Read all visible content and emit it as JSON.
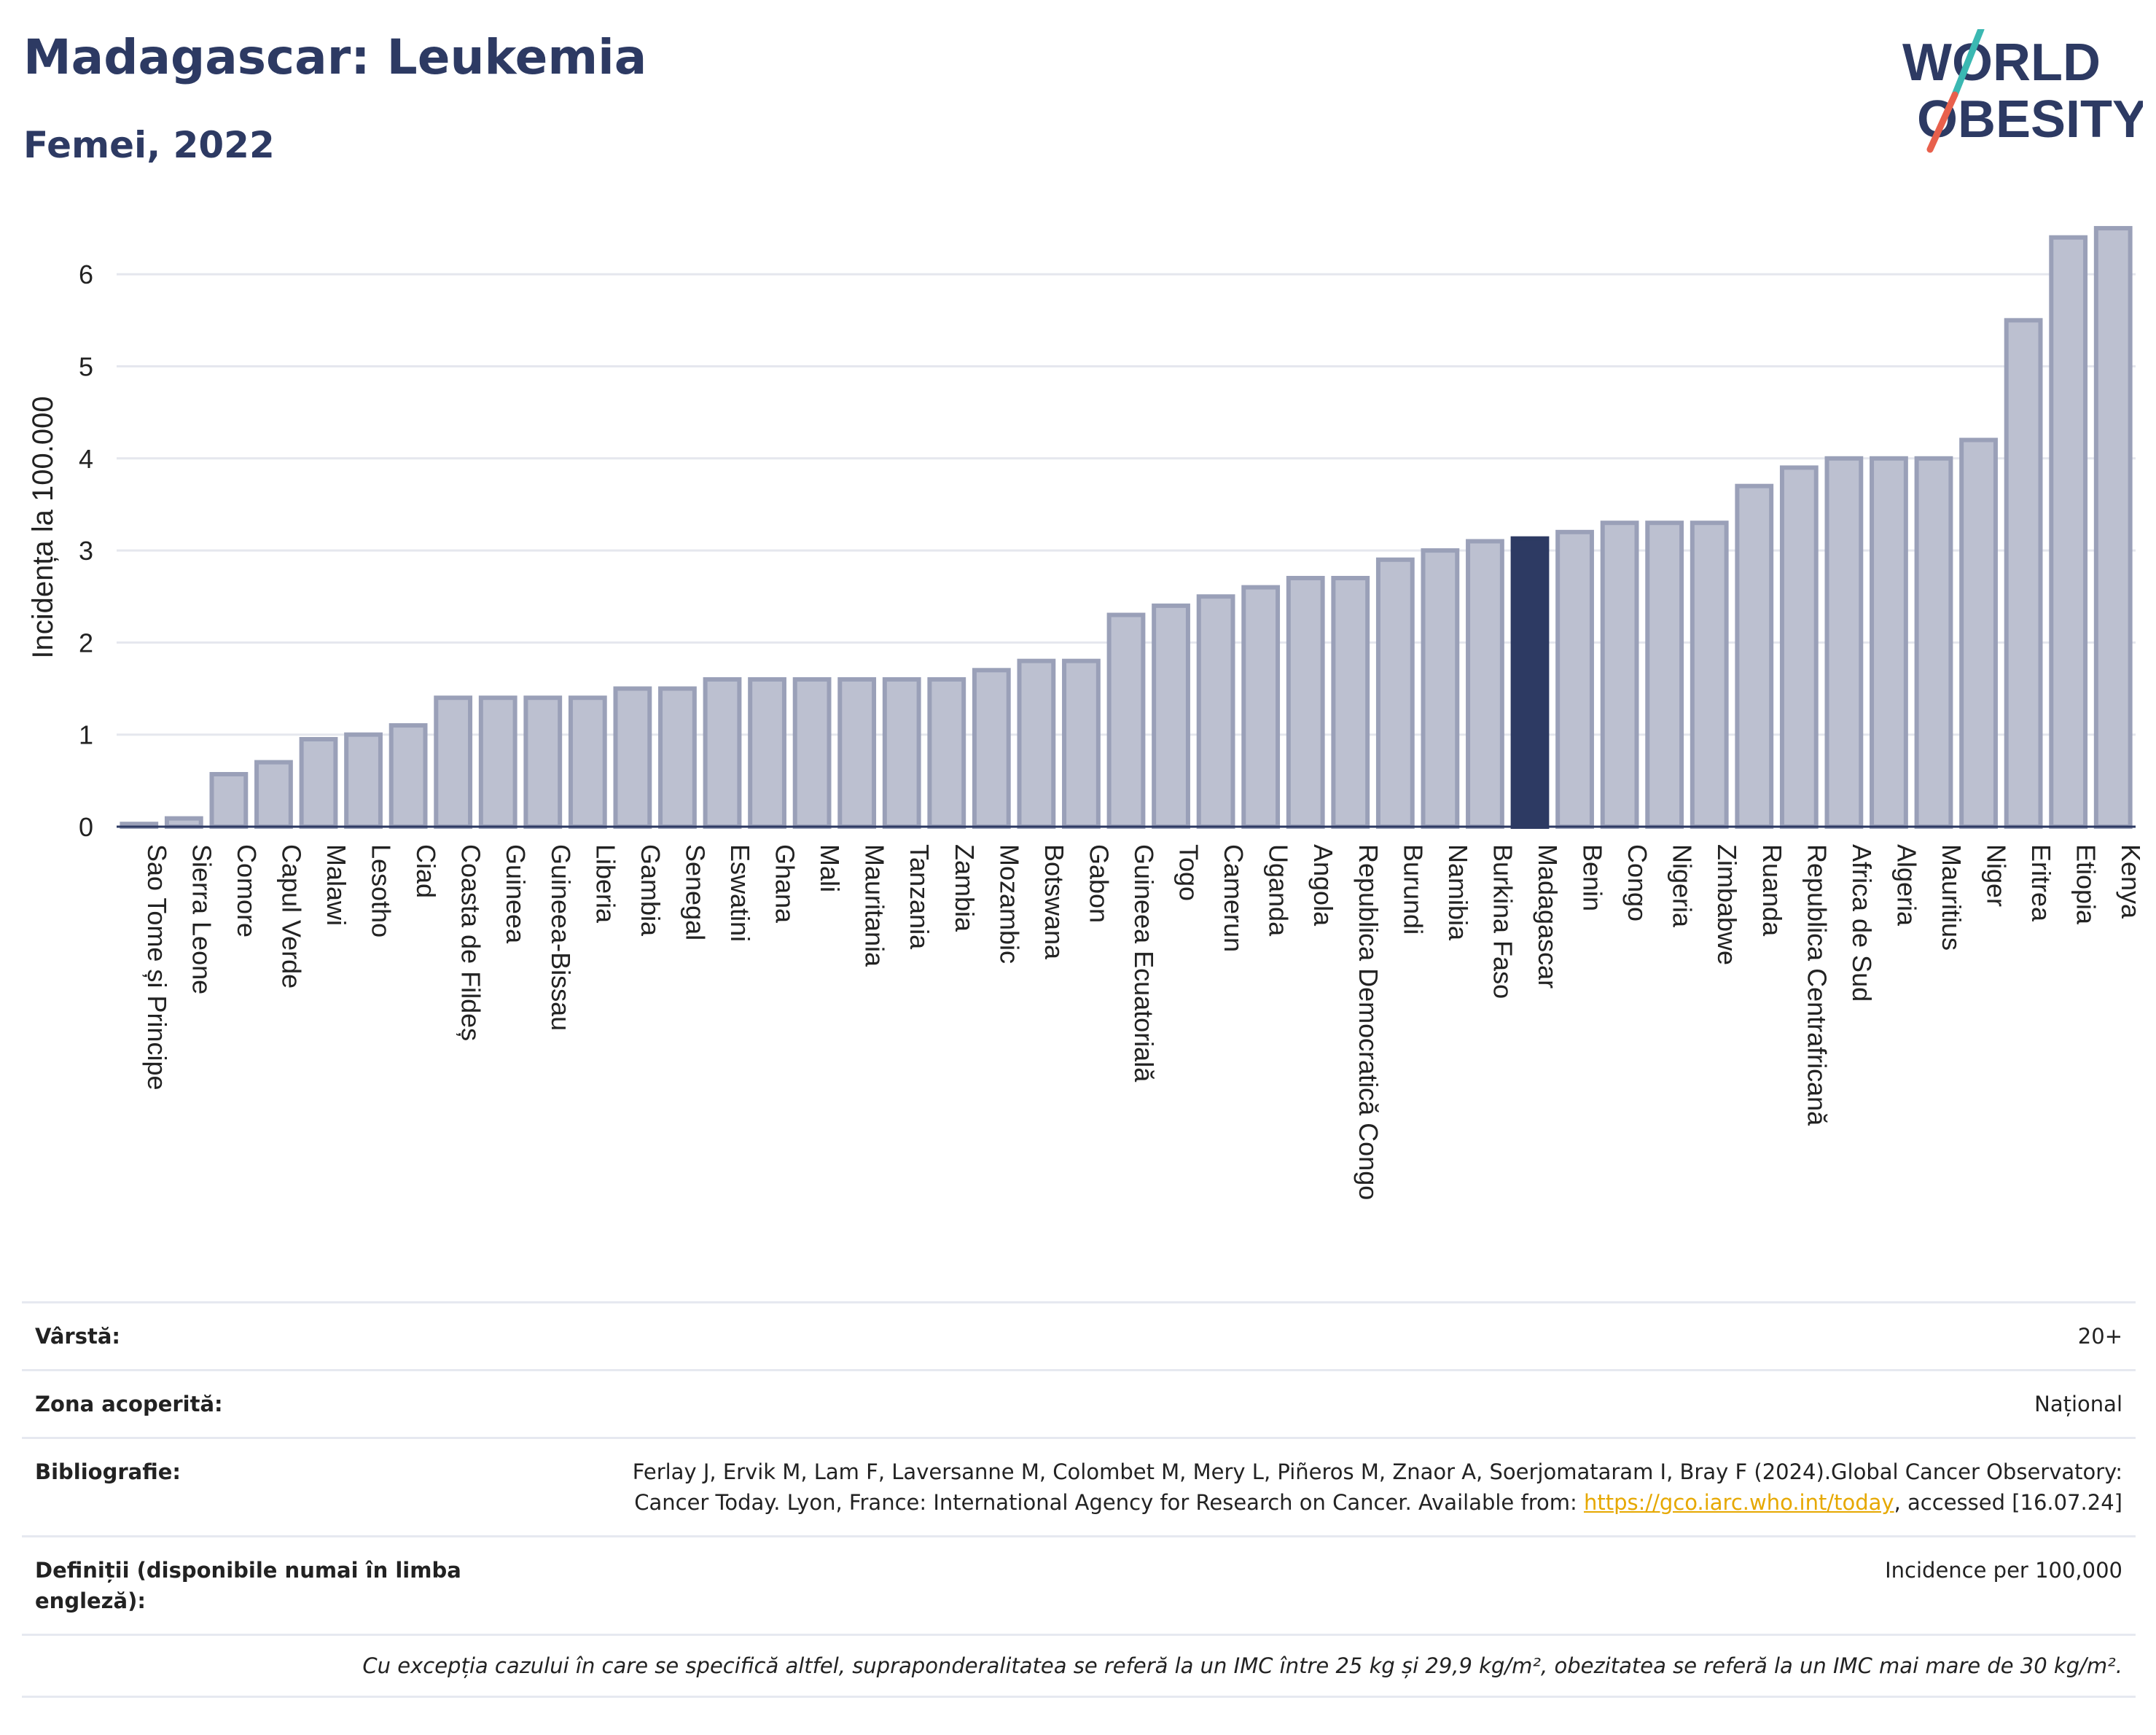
{
  "header": {
    "title": "Madagascar: Leukemia",
    "subtitle": "Femei, 2022"
  },
  "logo": {
    "line1": "WORLD",
    "line2": "OBESITY",
    "colors": {
      "text": "#2d3a63",
      "slash_top": "#3bb8b2",
      "slash_bottom": "#e8604c"
    }
  },
  "chart_data": {
    "type": "bar",
    "title": "Madagascar: Leukemia",
    "subtitle": "Femei, 2022",
    "ylabel": "Incidența la 100.000",
    "xlabel": "",
    "ylim": [
      0,
      6.6
    ],
    "yticks": [
      0,
      1,
      2,
      3,
      4,
      5,
      6
    ],
    "grid": true,
    "highlight": "Madagascar",
    "colors": {
      "bar": "#bcc0d0",
      "bar_edge": "#9aa0b8",
      "highlight": "#2d3a63",
      "grid": "#e5e7ee",
      "axis": "#2d3a63"
    },
    "categories": [
      "Sao Tome și Principe",
      "Sierra Leone",
      "Comore",
      "Capul Verde",
      "Malawi",
      "Lesotho",
      "Ciad",
      "Coasta de Fildeș",
      "Guineea",
      "Guineea-Bissau",
      "Liberia",
      "Gambia",
      "Senegal",
      "Eswatini",
      "Ghana",
      "Mali",
      "Mauritania",
      "Tanzania",
      "Zambia",
      "Mozambic",
      "Botswana",
      "Gabon",
      "Guineea Ecuatorială",
      "Togo",
      "Camerun",
      "Uganda",
      "Angola",
      "Republica Democratică Congo",
      "Burundi",
      "Namibia",
      "Burkina Faso",
      "Madagascar",
      "Benin",
      "Congo",
      "Nigeria",
      "Zimbabwe",
      "Ruanda",
      "Republica Centrafricană",
      "Africa de Sud",
      "Algeria",
      "Mauritius",
      "Niger",
      "Eritrea",
      "Etiopia",
      "Kenya"
    ],
    "values": [
      0.03,
      0.09,
      0.57,
      0.7,
      0.95,
      1.0,
      1.1,
      1.4,
      1.4,
      1.4,
      1.4,
      1.5,
      1.5,
      1.6,
      1.6,
      1.6,
      1.6,
      1.6,
      1.6,
      1.7,
      1.8,
      1.8,
      2.3,
      2.4,
      2.5,
      2.6,
      2.7,
      2.7,
      2.9,
      3.0,
      3.1,
      3.13,
      3.2,
      3.3,
      3.3,
      3.3,
      3.7,
      3.9,
      4.0,
      4.0,
      4.0,
      4.2,
      5.5,
      6.4,
      6.5
    ]
  },
  "info": {
    "age_label": "Vârstă:",
    "age_value": "20+",
    "coverage_label": "Zona acoperită:",
    "coverage_value": "Național",
    "bibliography_label": "Bibliografie:",
    "bibliography_text": "Ferlay J, Ervik M, Lam F, Laversanne M, Colombet M, Mery L, Piñeros M, Znaor A, Soerjomataram I, Bray F (2024).Global Cancer Observatory: Cancer Today. Lyon, France: International Agency for Research on Cancer. Available from: ",
    "bibliography_link": "https://gco.iarc.who.int/today",
    "bibliography_suffix": ", accessed [16.07.24]",
    "definitions_label": "Definiții (disponibile numai în limba engleză):",
    "definitions_value": "Incidence per 100,000",
    "footnote": "Cu excepția cazului în care se specifică altfel, supraponderalitatea se referă la un IMC între 25 kg și 29,9 kg/m², obezitatea se referă la un IMC mai mare de 30 kg/m²."
  }
}
